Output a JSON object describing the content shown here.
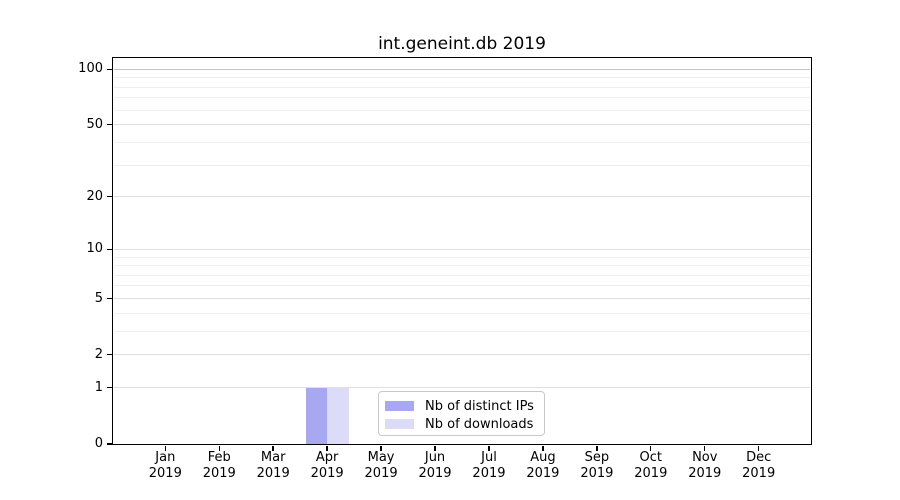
{
  "title": "int.geneint.db 2019",
  "chart_data": {
    "type": "bar",
    "title": "int.geneint.db 2019",
    "categories": [
      "Jan",
      "Feb",
      "Mar",
      "Apr",
      "May",
      "Jun",
      "Jul",
      "Aug",
      "Sep",
      "Oct",
      "Nov",
      "Dec"
    ],
    "category_year": "2019",
    "series": [
      {
        "name": "Nb of distinct IPs",
        "color": "#a8a8f0",
        "values": [
          0,
          0,
          0,
          1,
          0,
          0,
          0,
          0,
          0,
          0,
          0,
          0
        ]
      },
      {
        "name": "Nb of downloads",
        "color": "#dcdcf8",
        "values": [
          0,
          0,
          0,
          1,
          0,
          0,
          0,
          0,
          0,
          0,
          0,
          0
        ]
      }
    ],
    "y_scale": "log1p",
    "y_axis": {
      "major_ticks": [
        0,
        1,
        2,
        5,
        10,
        20,
        50,
        100
      ],
      "minor_gridlines": [
        3,
        4,
        6,
        7,
        8,
        9,
        30,
        40,
        60,
        70,
        80,
        90
      ],
      "max_value": 115
    },
    "x_axis": {
      "tick_labels_two_lines": true
    },
    "grid": "horizontal-major-and-minor",
    "legend": {
      "position": "lower-center-inside"
    },
    "colors": {
      "bar_distinct_ips": "#a8a8f0",
      "bar_downloads": "#dcdcf8",
      "spine": "#000000",
      "grid_top_line": "#c4c4c4",
      "grid_major": "#dfdfdf",
      "grid_minor": "#efefef",
      "legend_border": "#c9c9c9",
      "text": "#000000"
    }
  }
}
